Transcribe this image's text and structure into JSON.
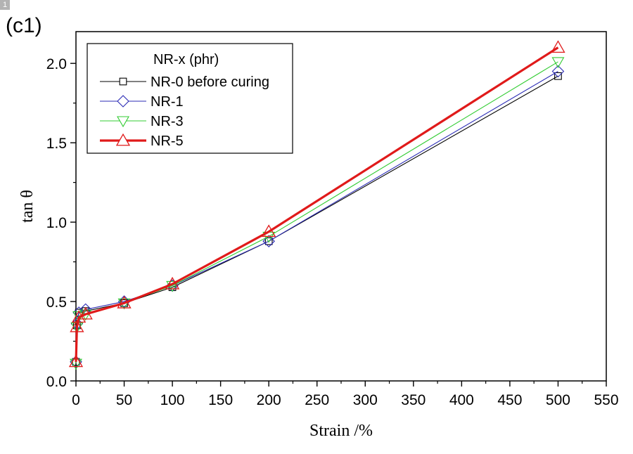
{
  "corner_tag": "1",
  "chart_data": {
    "type": "line",
    "panel_label": "(c1)",
    "title": "",
    "xlabel": "Strain /%",
    "ylabel": "tan θ",
    "xlim": [
      0,
      550
    ],
    "ylim": [
      0,
      2.2
    ],
    "xticks": [
      0,
      50,
      100,
      150,
      200,
      250,
      300,
      350,
      400,
      450,
      500,
      550
    ],
    "yticks": [
      0.0,
      0.5,
      1.0,
      1.5,
      2.0
    ],
    "xtick_labels": [
      "0",
      "50",
      "100",
      "150",
      "200",
      "250",
      "300",
      "350",
      "400",
      "450",
      "500",
      "550"
    ],
    "ytick_labels": [
      "0.0",
      "0.5",
      "1.0",
      "1.5",
      "2.0"
    ],
    "grid": false,
    "legend": {
      "title": "NR-x (phr)",
      "placement": "top-left"
    },
    "x": [
      0,
      1,
      3,
      10,
      50,
      100,
      200,
      500
    ],
    "series": [
      {
        "name": "NR-0 before curing",
        "marker": "square",
        "color": "#000000",
        "values": [
          0.12,
          0.35,
          0.43,
          0.44,
          0.49,
          0.59,
          0.88,
          1.92
        ]
      },
      {
        "name": "NR-1",
        "marker": "diamond",
        "color": "#2b2bb5",
        "values": [
          0.12,
          0.36,
          0.43,
          0.45,
          0.5,
          0.6,
          0.88,
          1.95
        ]
      },
      {
        "name": "NR-3",
        "marker": "triangle-down",
        "color": "#33cc33",
        "values": [
          0.11,
          0.34,
          0.41,
          0.42,
          0.49,
          0.6,
          0.91,
          2.01
        ]
      },
      {
        "name": "NR-5",
        "marker": "triangle-up",
        "color": "#e01a1a",
        "values": [
          0.12,
          0.34,
          0.4,
          0.42,
          0.49,
          0.61,
          0.94,
          2.1
        ]
      }
    ]
  }
}
